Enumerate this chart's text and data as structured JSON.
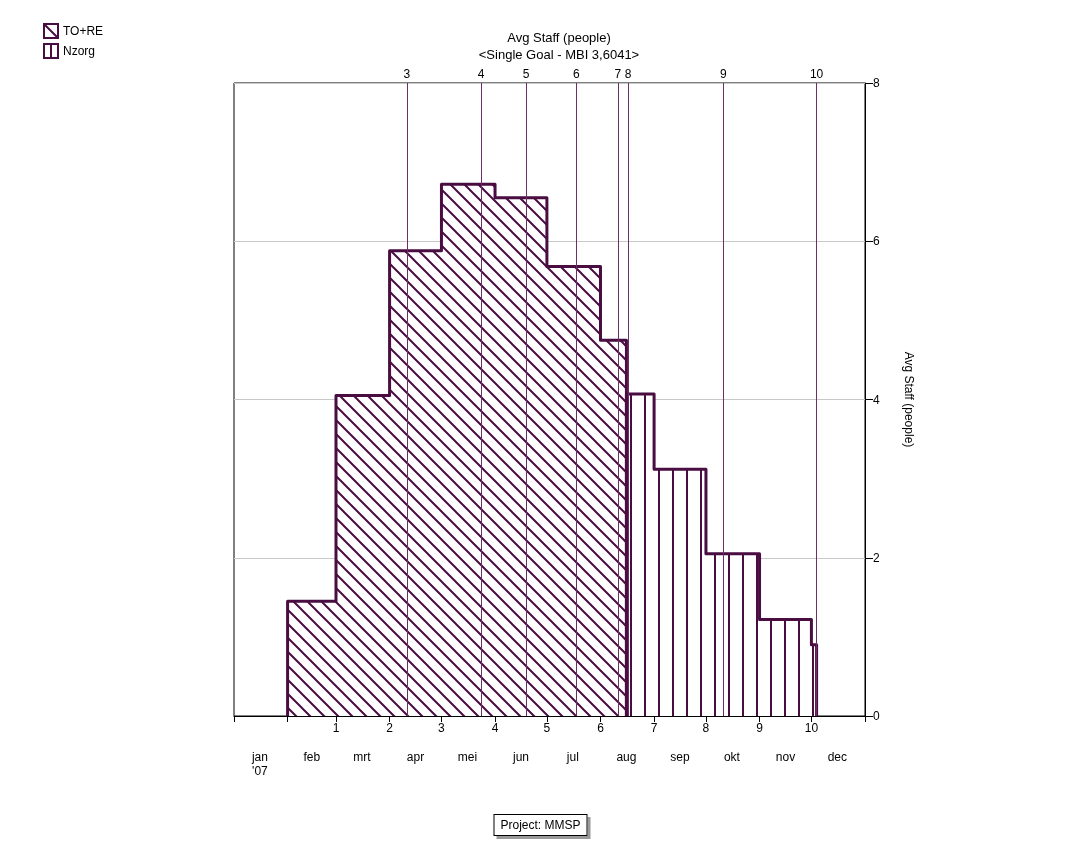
{
  "chart_data": {
    "type": "step",
    "title": "Avg Staff (people)",
    "subtitle": "<Single Goal - MBI 3,6041>",
    "ylabel": "Avg Staff (people)",
    "annotations": [
      "Project: MMSP"
    ],
    "series": [
      {
        "name": "TO+RE",
        "type": "area",
        "color": "#4a0d42",
        "x": [
          "2007-02-01",
          "2007-02-01",
          "2007-03-01",
          "2007-04-01",
          "2007-05-01",
          "2007-06-01",
          "2007-07-01",
          "2007-08-01",
          "2007-08-16"
        ],
        "values": [
          0,
          1.45,
          4.05,
          5.88,
          6.72,
          6.55,
          5.68,
          4.75,
          0
        ]
      },
      {
        "name": "Nzorg",
        "type": "area",
        "color": "#4a0d42",
        "x": [
          "2007-08-16",
          "2007-08-16",
          "2007-09-01",
          "2007-10-01",
          "2007-11-01",
          "2007-12-01",
          "2007-12-04"
        ],
        "values": [
          0,
          4.07,
          3.12,
          2.05,
          1.22,
          0.9,
          0
        ]
      }
    ],
    "xlim": [
      "2007-01-01",
      "2008-01-01"
    ],
    "xticks": [
      {
        "value": "2007-01-01",
        "label": null
      },
      {
        "value": "2007-02-01",
        "label": null
      },
      {
        "value": "2007-03-01",
        "label": "1"
      },
      {
        "value": "2007-04-01",
        "label": "2"
      },
      {
        "value": "2007-05-01",
        "label": "3"
      },
      {
        "value": "2007-06-01",
        "label": "4"
      },
      {
        "value": "2007-07-01",
        "label": "5"
      },
      {
        "value": "2007-08-01",
        "label": "6"
      },
      {
        "value": "2007-09-01",
        "label": "7"
      },
      {
        "value": "2007-10-01",
        "label": "8"
      },
      {
        "value": "2007-11-01",
        "label": "9"
      },
      {
        "value": "2007-12-01",
        "label": "10"
      },
      {
        "value": "2008-01-01",
        "label": null
      }
    ],
    "x2lim": [
      "2007-01-01",
      "2008-01-01"
    ],
    "x2ticks": [
      {
        "value": "2007-01-16",
        "label": "jan\n'07"
      },
      {
        "value": "2007-02-15",
        "label": "feb"
      },
      {
        "value": "2007-03-16",
        "label": "mrt"
      },
      {
        "value": "2007-04-16",
        "label": "apr"
      },
      {
        "value": "2007-05-16",
        "label": "mei"
      },
      {
        "value": "2007-06-16",
        "label": "jun"
      },
      {
        "value": "2007-07-16",
        "label": "jul"
      },
      {
        "value": "2007-08-16",
        "label": "aug"
      },
      {
        "value": "2007-09-16",
        "label": "sep"
      },
      {
        "value": "2007-10-16",
        "label": "okt"
      },
      {
        "value": "2007-11-16",
        "label": "nov"
      },
      {
        "value": "2007-12-16",
        "label": "dec"
      }
    ],
    "ylim": [
      0,
      8
    ],
    "yticks": [
      0,
      2,
      4,
      6,
      8
    ],
    "ref_lines": [
      {
        "axis": "x",
        "value": "2007-04-11",
        "label": "3",
        "color": "#6b2f63"
      },
      {
        "axis": "x",
        "value": "2007-05-24",
        "label": "4",
        "color": "#6b2f63"
      },
      {
        "axis": "x",
        "value": "2007-06-19",
        "label": "5",
        "color": "#6b2f63"
      },
      {
        "axis": "x",
        "value": "2007-07-18",
        "label": "6",
        "color": "#6b2f63"
      },
      {
        "axis": "x",
        "value": "2007-08-11",
        "label": "7",
        "color": "#6b2f63"
      },
      {
        "axis": "x",
        "value": "2007-08-17",
        "label": "8",
        "color": "#6b2f63"
      },
      {
        "axis": "x",
        "value": "2007-10-11",
        "label": "9",
        "color": "#6b2f63"
      },
      {
        "axis": "x",
        "value": "2007-12-04",
        "label": "10",
        "color": "#6b2f63"
      }
    ],
    "grid": "y",
    "legend": "top left",
    "marker": "none",
    "line_style": "solid"
  }
}
